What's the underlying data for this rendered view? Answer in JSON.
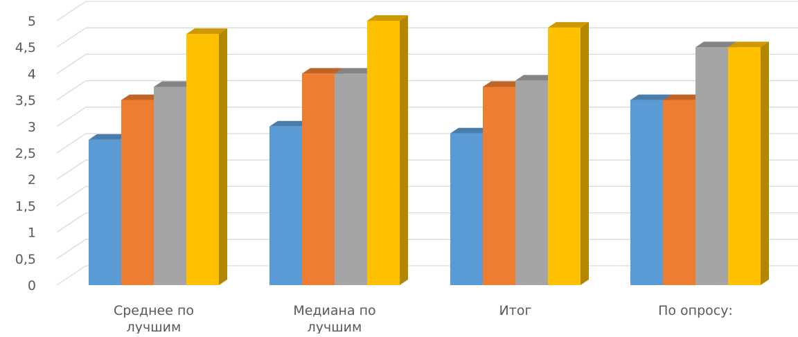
{
  "chart_data": {
    "type": "bar",
    "title": "",
    "xlabel": "",
    "ylabel": "",
    "ylim": [
      0,
      5
    ],
    "ytick_labels": [
      "0",
      "0,5",
      "1",
      "1,5",
      "2",
      "2,5",
      "3",
      "3,5",
      "4",
      "4,5",
      "5"
    ],
    "grid": true,
    "categories": [
      [
        "Среднее по",
        "лучшим"
      ],
      [
        "Медиана по",
        "лучшим"
      ],
      [
        "Итог"
      ],
      [
        "По опросу:"
      ]
    ],
    "series": [
      {
        "values": [
          2.75,
          3.0,
          2.87,
          3.5
        ],
        "color": "#5b9bd5"
      },
      {
        "values": [
          3.5,
          4.0,
          3.75,
          3.5
        ],
        "color": "#ed7d31"
      },
      {
        "values": [
          3.75,
          4.0,
          3.87,
          4.5
        ],
        "color": "#a5a5a5"
      },
      {
        "values": [
          4.75,
          5.0,
          4.87,
          4.5
        ],
        "color": "#ffc000"
      }
    ]
  }
}
